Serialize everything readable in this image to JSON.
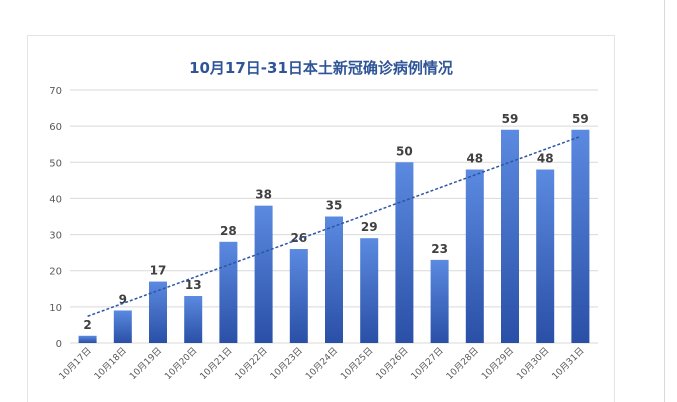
{
  "colors": {
    "title": "#2f5597",
    "bar_top": "#5b8ae0",
    "bar_bottom": "#2a4fa6",
    "trendline": "#2e55a5",
    "grid": "#d9d9d9",
    "axis_text": "#595959",
    "data_label": "#404040"
  },
  "chart_data": {
    "type": "bar",
    "title": "10月17日-31日本土新冠确诊病例情况",
    "categories": [
      "10月17日",
      "10月18日",
      "10月19日",
      "10月20日",
      "10月21日",
      "10月22日",
      "10月23日",
      "10月24日",
      "10月25日",
      "10月26日",
      "10月27日",
      "10月28日",
      "10月29日",
      "10月30日",
      "10月31日"
    ],
    "values": [
      2,
      9,
      17,
      13,
      28,
      38,
      26,
      35,
      29,
      50,
      23,
      48,
      59,
      48,
      59
    ],
    "data_labels": [
      "2",
      "9",
      "17",
      "13",
      "28",
      "38",
      "26",
      "35",
      "29",
      "50",
      "23",
      "48",
      "59",
      "48",
      "59"
    ],
    "yticks": [
      "0",
      "10",
      "20",
      "30",
      "40",
      "50",
      "60",
      "70"
    ],
    "ylim": [
      0,
      70
    ],
    "grid": true,
    "legend": "none",
    "trendline": {
      "type": "linear",
      "style": "dashed"
    },
    "xlabel": "",
    "ylabel": ""
  }
}
